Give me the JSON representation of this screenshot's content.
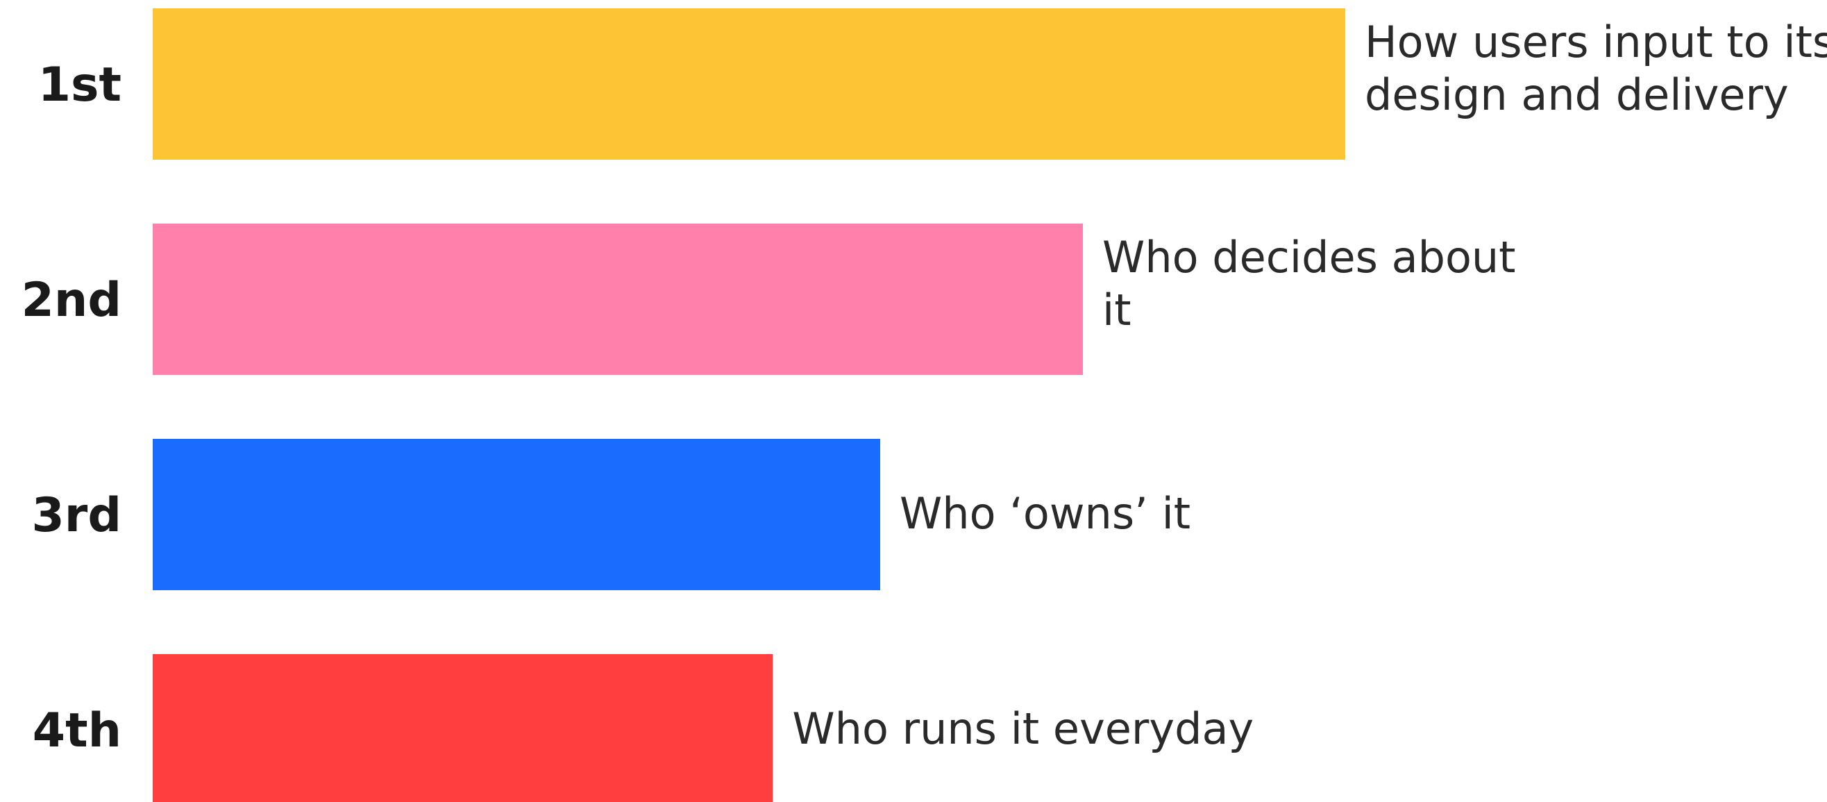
{
  "chart_data": {
    "type": "bar",
    "orientation": "horizontal",
    "title": "",
    "xlabel": "",
    "ylabel": "",
    "grid": false,
    "categories": [
      "1st",
      "2nd",
      "3rd",
      "4th"
    ],
    "values": [
      100,
      78,
      61,
      52
    ],
    "bar_labels": [
      [
        "How users input to its",
        "design and delivery"
      ],
      [
        "Who decides about",
        "it"
      ],
      [
        "Who ‘owns’ it"
      ],
      [
        "Who runs it everyday"
      ]
    ],
    "colors": [
      "#FDC435",
      "#FF80AA",
      "#1A6CFF",
      "#FF3F3F"
    ],
    "xlim": [
      0,
      100
    ]
  }
}
